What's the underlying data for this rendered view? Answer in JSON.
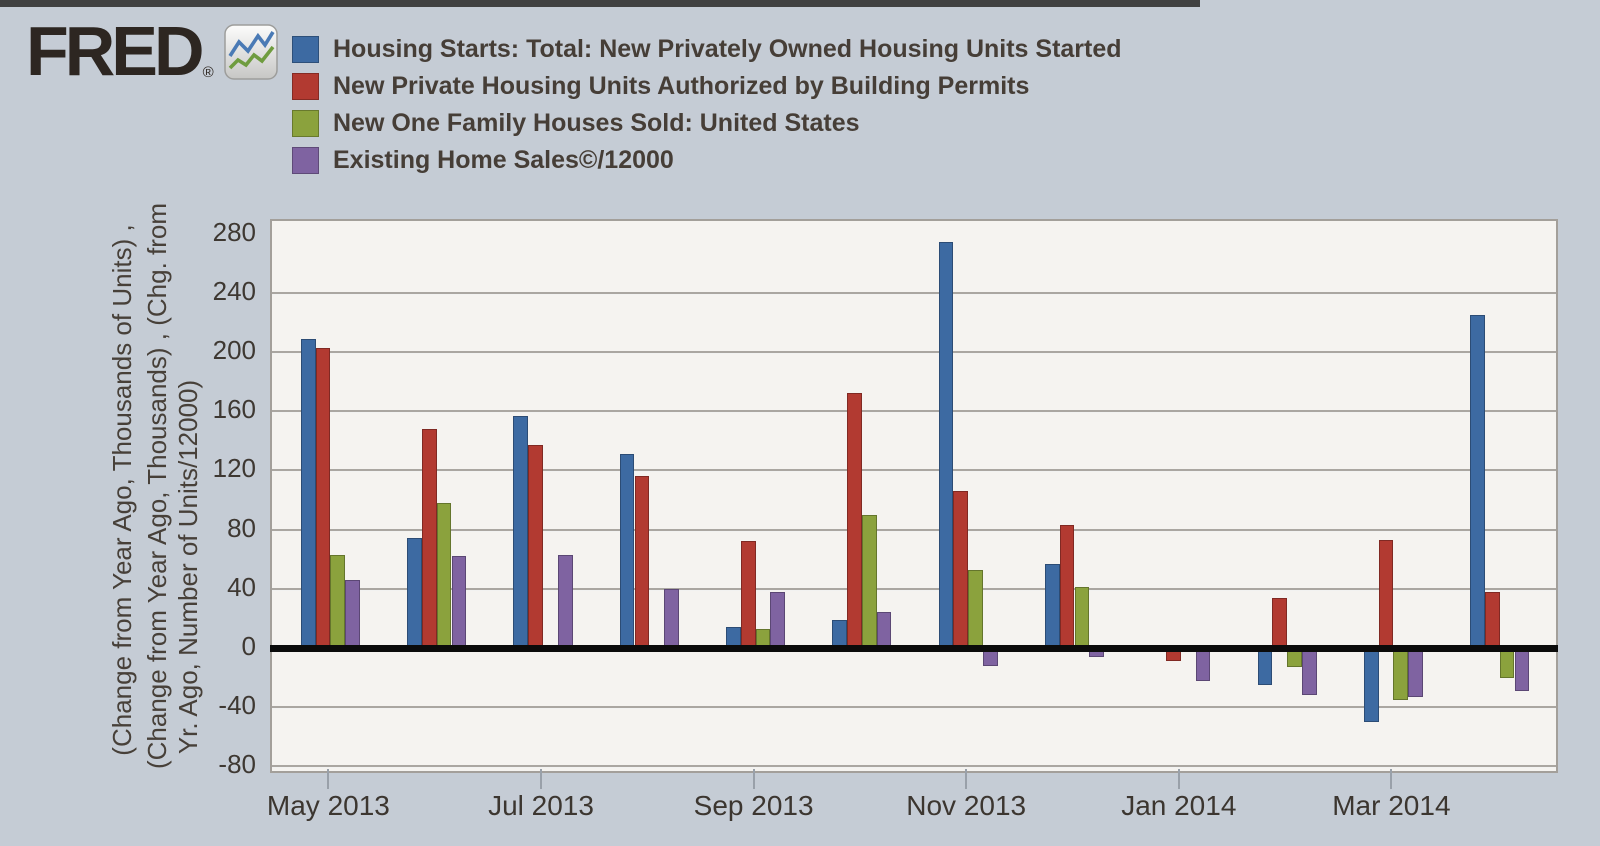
{
  "header": {
    "logo": {
      "text": "FRED",
      "registered_mark": "®",
      "icon": "fred-sparkline-icon"
    }
  },
  "legend": {
    "items": [
      {
        "label": "Housing Starts: Total: New Privately Owned Housing Units Started",
        "color": "#3d6aa2"
      },
      {
        "label": "New Private Housing Units Authorized by Building Permits",
        "color": "#b23a31"
      },
      {
        "label": "New One Family Houses Sold: United States",
        "color": "#8ba23d"
      },
      {
        "label": "Existing Home Sales©/12000",
        "color": "#7f63a1"
      }
    ]
  },
  "y_axis": {
    "title_lines": [
      "(Change from Year Ago, Thousands of Units) ,",
      "(Change from Year Ago, Thousands) , (Chg. from",
      "Yr. Ago, Number of Units/12000)"
    ],
    "tick_labels": [
      "280",
      "240",
      "200",
      "160",
      "120",
      "80",
      "40",
      "0",
      "-40",
      "-80"
    ]
  },
  "x_axis": {
    "tick_labels": [
      "May 2013",
      "Jul 2013",
      "Sep 2013",
      "Nov 2013",
      "Jan 2014",
      "Mar 2014"
    ]
  },
  "chart_data": {
    "type": "bar",
    "categories": [
      "May 2013",
      "Jun 2013",
      "Jul 2013",
      "Aug 2013",
      "Sep 2013",
      "Oct 2013",
      "Nov 2013",
      "Dec 2013",
      "Jan 2014",
      "Feb 2014",
      "Mar 2014",
      "Apr 2014"
    ],
    "series": [
      {
        "name": "Housing Starts: Total: New Privately Owned Housing Units Started",
        "color": "#3d6aa2",
        "values": [
          209,
          74,
          157,
          131,
          14,
          19,
          274,
          57,
          0,
          -25,
          -50,
          225
        ]
      },
      {
        "name": "New Private Housing Units Authorized by Building Permits",
        "color": "#b23a31",
        "values": [
          203,
          148,
          137,
          116,
          72,
          172,
          106,
          83,
          -9,
          34,
          73,
          38
        ]
      },
      {
        "name": "New One Family Houses Sold: United States",
        "color": "#8ba23d",
        "values": [
          63,
          98,
          -3,
          0,
          13,
          90,
          53,
          41,
          0,
          -13,
          -35,
          -20
        ]
      },
      {
        "name": "Existing Home Sales©/12000",
        "color": "#7f63a1",
        "values": [
          46,
          62,
          63,
          40,
          38,
          24,
          -12,
          -6,
          -22,
          -32,
          -33,
          -29
        ]
      }
    ],
    "ylim": [
      -80,
      280
    ],
    "ytick_step": 40,
    "grid": "horizontal",
    "legend_position": "top",
    "zero_line": true
  }
}
